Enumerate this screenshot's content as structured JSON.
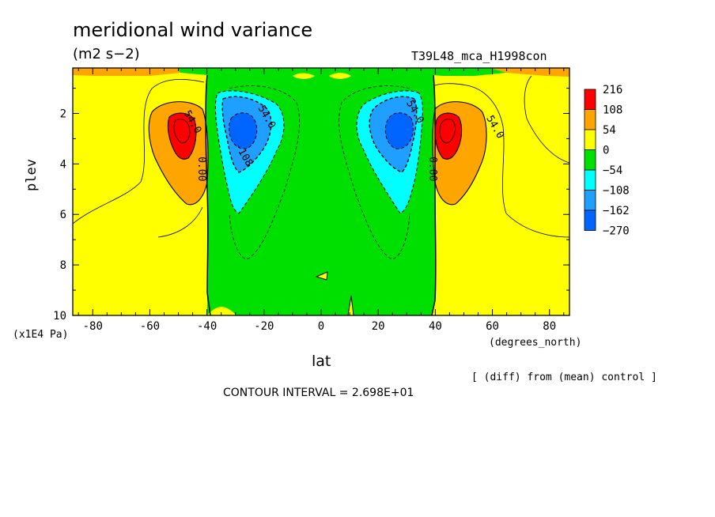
{
  "title": "meridional wind variance",
  "units": "(m2 s−2)",
  "run_label": "T39L48_mca_H1998con",
  "note": "[ (diff) from (mean) control ]",
  "contour_interval_text": "CONTOUR INTERVAL = 2.698E+01",
  "chart_data": {
    "type": "heatmap",
    "subtype": "filled-contour latitude-pressure cross section",
    "title": "meridional wind variance",
    "xlabel": "lat",
    "x_units": "(degrees_north)",
    "ylabel": "plev",
    "y_units": "(x1E4 Pa)",
    "xlim": [
      -87,
      87
    ],
    "ylim": [
      10,
      0.2
    ],
    "y_inverted": true,
    "x_ticks": [
      -80,
      -60,
      -40,
      -20,
      0,
      20,
      40,
      60,
      80
    ],
    "y_ticks": [
      2,
      4,
      6,
      8,
      10
    ],
    "contour_interval": 26.98,
    "legend": {
      "labels": [
        "216",
        "108",
        "54",
        "0",
        "−54",
        "−108",
        "−162",
        "−270"
      ],
      "levels": [
        216,
        108,
        54,
        0,
        -54,
        -108,
        -162,
        -270
      ],
      "colors": [
        "#ff0000",
        "#ffa500",
        "#ffff00",
        "#00e000",
        "#00ffff",
        "#1f9fff",
        "#0064ff"
      ],
      "placement": "right"
    },
    "contour_labels": [
      {
        "text": "54.0",
        "lat": -46,
        "plev": 2.4
      },
      {
        "text": "0.00",
        "lat": -43,
        "plev": 4.2
      },
      {
        "text": "54.0",
        "lat": -20,
        "plev": 2.2
      },
      {
        "text": "-108",
        "lat": -28,
        "plev": 3.7
      },
      {
        "text": "54.0",
        "lat": 32,
        "plev": 2.0
      },
      {
        "text": "0.00",
        "lat": 38,
        "plev": 4.2
      },
      {
        "text": "54.0",
        "lat": 60,
        "plev": 2.6
      }
    ],
    "features": [
      {
        "name": "SH positive maximum",
        "lat": -48,
        "plev": 2.8,
        "value": 216
      },
      {
        "name": "NH positive maximum",
        "lat": 47,
        "plev": 2.8,
        "value": 216
      },
      {
        "name": "SH negative minimum",
        "lat": -29,
        "plev": 2.6,
        "value": -270
      },
      {
        "name": "NH negative minimum",
        "lat": 28,
        "plev": 2.6,
        "value": -270
      }
    ]
  }
}
